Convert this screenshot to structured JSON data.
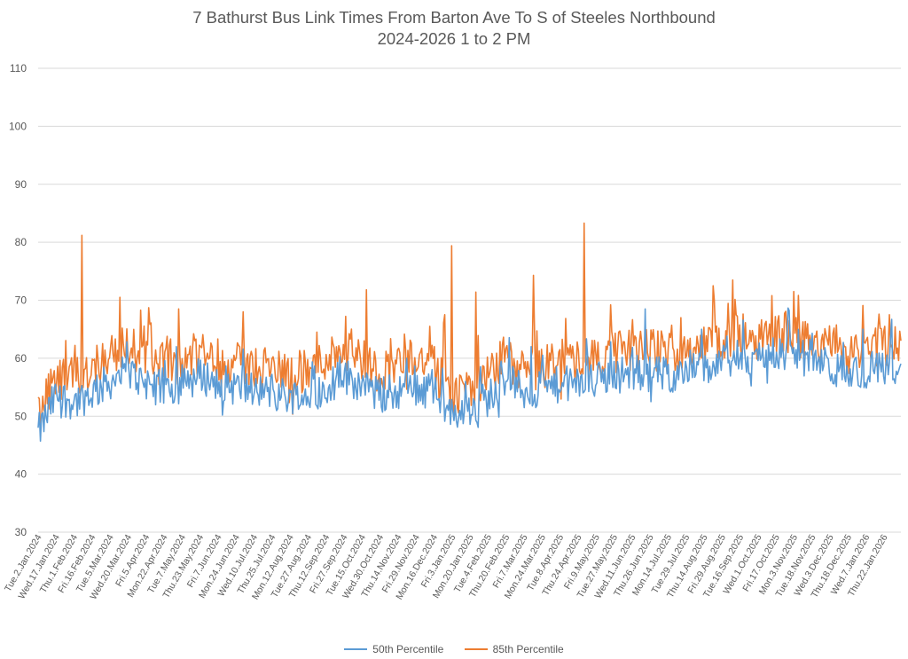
{
  "chart_data": {
    "type": "line",
    "title": "7 Bathurst Bus Link Times From Barton Ave To S of Steeles Northbound",
    "subtitle": "2024-2026 1 to 2 PM",
    "xlabel": "",
    "ylabel": "",
    "ylim": [
      30,
      110
    ],
    "yticks": [
      30,
      40,
      50,
      60,
      70,
      80,
      90,
      100,
      110
    ],
    "grid": true,
    "legend_position": "bottom",
    "x_tick_labels": [
      "Tue.2.Jan.2024",
      "Wed.17.Jan.2024",
      "Thu.1.Feb.2024",
      "Fri.16.Feb.2024",
      "Tue.5.Mar.2024",
      "Wed.20.Mar.2024",
      "Fri.5.Apr.2024",
      "Mon.22.Apr.2024",
      "Tue.7.May.2024",
      "Thu.23.May.2024",
      "Fri.7.Jun.2024",
      "Mon.24.Jun.2024",
      "Wed.10.Jul.2024",
      "Thu.25.Jul.2024",
      "Mon.12.Aug.2024",
      "Tue.27.Aug.2024",
      "Thu.12.Sep.2024",
      "Fri.27.Sep.2024",
      "Tue.15.Oct.2024",
      "Wed.30.Oct.2024",
      "Thu.14.Nov.2024",
      "Fri.29.Nov.2024",
      "Mon.16.Dec.2024",
      "Fri.3.Jan.2025",
      "Mon.20.Jan.2025",
      "Tue.4.Feb.2025",
      "Thu.20.Feb.2025",
      "Fri.7.Mar.2025",
      "Mon.24.Mar.2025",
      "Tue.8.Apr.2025",
      "Thu.24.Apr.2025",
      "Fri.9.May.2025",
      "Tue.27.May.2025",
      "Wed.11.Jun.2025",
      "Thu.26.Jun.2025",
      "Mon.14.Jul.2025",
      "Tue.29.Jul.2025",
      "Thu.14.Aug.2025",
      "Fri.29.Aug.2025",
      "Tue.16.Sep.2025",
      "Wed.1.Oct.2025",
      "Fri.17.Oct.2025",
      "Mon.3.Nov.2025",
      "Tue.18.Nov.2025",
      "Wed.3.Dec.2025",
      "Thu.18.Dec.2025",
      "Wed.7.Jan.2026",
      "Thu.22.Jan.2026"
    ],
    "series": [
      {
        "name": "50th Percentile",
        "color": "#5B9BD5",
        "anchors": [
          47.0,
          53.5,
          52.5,
          54.0,
          56.0,
          57.5,
          56.0,
          54.5,
          55.5,
          57.0,
          56.0,
          55.0,
          54.5,
          54.0,
          53.5,
          53.5,
          55.0,
          57.0,
          55.5,
          53.5,
          54.5,
          55.0,
          54.0,
          50.5,
          51.5,
          53.0,
          57.0,
          54.0,
          54.5,
          55.5,
          55.5,
          56.0,
          57.0,
          57.5,
          57.5,
          57.0,
          58.0,
          58.0,
          59.0,
          60.0,
          60.0,
          61.0,
          60.5,
          60.0,
          58.5,
          57.0,
          58.0,
          58.5,
          59.0
        ],
        "spikes": [
          [
            120,
            62.0
          ],
          [
            320,
            60.0
          ],
          [
            428,
            62.0
          ],
          [
            527,
            68.5
          ],
          [
            576,
            65.0
          ],
          [
            716,
            65.0
          ]
        ]
      },
      {
        "name": "85th Percentile",
        "color": "#ED7D31",
        "anchors": [
          50.5,
          56.0,
          56.5,
          58.5,
          61.0,
          62.0,
          60.5,
          58.5,
          59.5,
          61.0,
          60.0,
          59.0,
          58.5,
          58.0,
          58.0,
          57.5,
          60.0,
          62.0,
          60.0,
          57.5,
          59.0,
          60.5,
          58.5,
          53.5,
          54.5,
          56.5,
          60.5,
          57.5,
          58.0,
          60.0,
          60.0,
          60.0,
          61.0,
          61.5,
          61.5,
          61.0,
          62.0,
          62.0,
          63.0,
          64.0,
          63.5,
          64.5,
          64.0,
          63.0,
          62.0,
          61.0,
          61.5,
          62.0,
          63.0
        ],
        "spikes": [
          [
            38,
            81.2
          ],
          [
            71,
            70.5
          ],
          [
            122,
            68.5
          ],
          [
            178,
            68.0
          ],
          [
            242,
            64.5
          ],
          [
            285,
            71.8
          ],
          [
            340,
            65.5
          ],
          [
            353,
            67.5
          ],
          [
            359,
            79.4
          ],
          [
            380,
            71.4
          ],
          [
            430,
            74.3
          ],
          [
            474,
            83.3
          ],
          [
            497,
            69.2
          ],
          [
            586,
            72.5
          ],
          [
            603,
            73.5
          ],
          [
            637,
            70.8
          ],
          [
            656,
            71.5
          ],
          [
            716,
            69.1
          ],
          [
            730,
            67.6
          ]
        ]
      }
    ]
  }
}
